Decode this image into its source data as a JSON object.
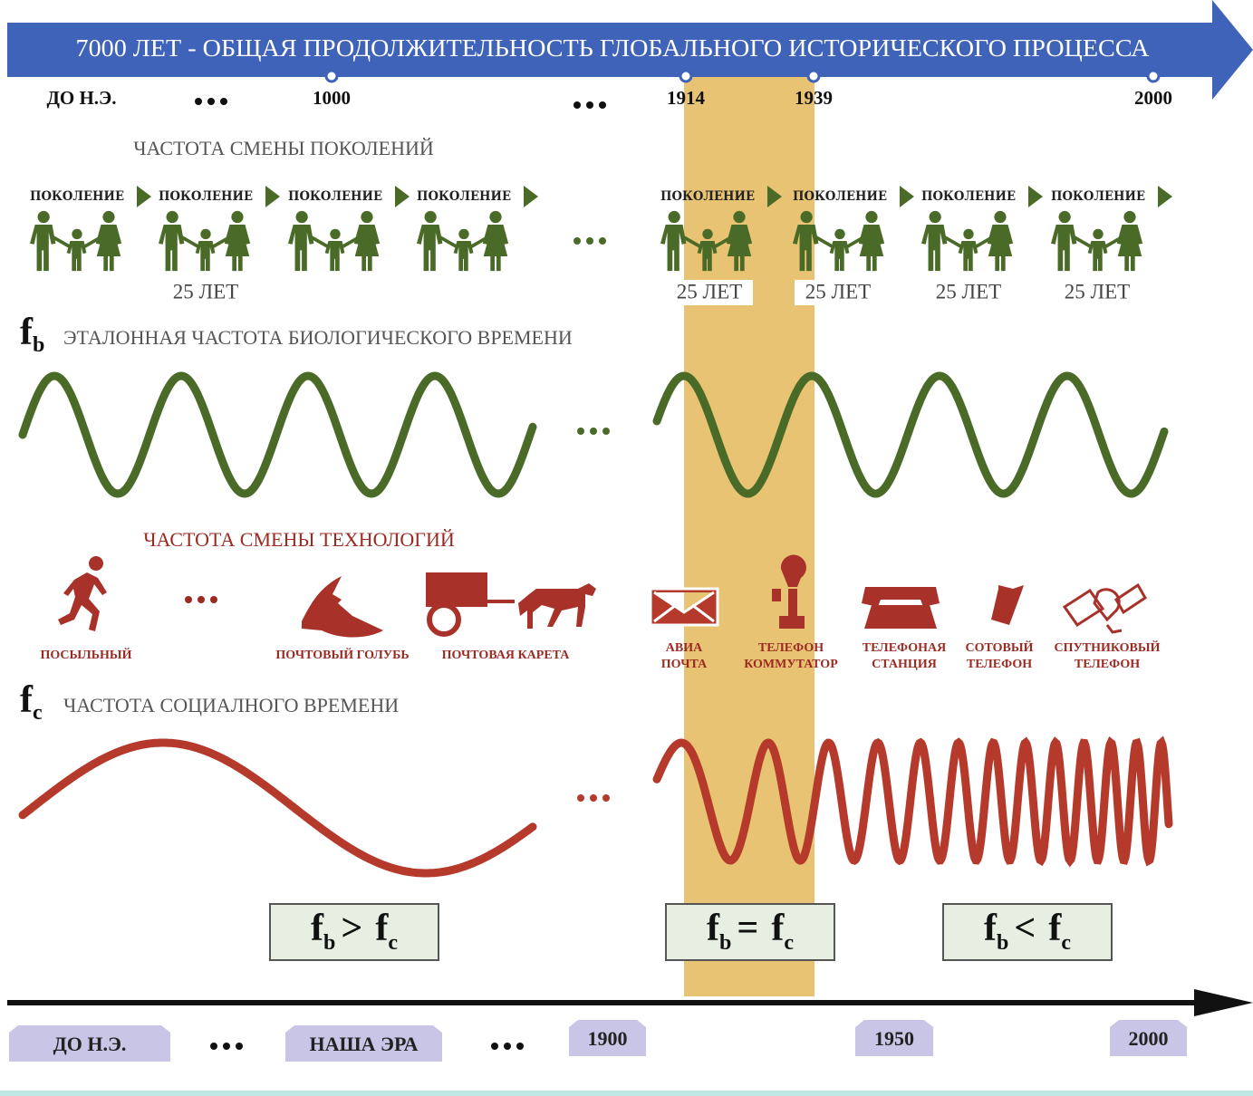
{
  "header": {
    "title": "7000 ЛЕТ - ОБЩАЯ ПРОДОЛЖИТЕЛЬНОСТЬ ГЛОБАЛЬНОГО ИСТОРИЧЕСКОГО ПРОЦЕССА"
  },
  "top_timeline": {
    "labels": [
      "ДО Н.Э.",
      "1000",
      "1914",
      "1939",
      "2000"
    ]
  },
  "generations": {
    "title": "ЧАСТОТА СМЕНЫ ПОКОЛЕНИЙ",
    "labels": [
      "ПОКОЛЕНИЕ",
      "ПОКОЛЕНИЕ",
      "ПОКОЛЕНИЕ",
      "ПОКОЛЕНИЕ",
      "ПОКОЛЕНИЕ",
      "ПОКОЛЕНИЕ",
      "ПОКОЛЕНИЕ",
      "ПОКОЛЕНИЕ"
    ],
    "durations": [
      "25 ЛЕТ",
      "25 ЛЕТ",
      "25 ЛЕТ",
      "25 ЛЕТ",
      "25 ЛЕТ"
    ]
  },
  "biological": {
    "symbol": "f",
    "subscript": "b",
    "title": "ЭТАЛОННАЯ ЧАСТОТА БИОЛОГИЧЕСКОГО ВРЕМЕНИ"
  },
  "technologies": {
    "title": "ЧАСТОТА СМЕНЫ ТЕХНОЛОГИЙ",
    "items": [
      [
        "ПОСЫЛЬНЫЙ"
      ],
      [
        "ПОЧТОВЫЙ ГОЛУБЬ"
      ],
      [
        "ПОЧТОВАЯ КАРЕТА"
      ],
      [
        "АВИА",
        "ПОЧТА"
      ],
      [
        "ТЕЛЕФОН",
        "КОММУТАТОР"
      ],
      [
        "ТЕЛЕФОНАЯ",
        "СТАНЦИЯ"
      ],
      [
        "СОТОВЫЙ",
        "ТЕЛЕФОН"
      ],
      [
        "СПУТНИКОВЫЙ",
        "ТЕЛЕФОН"
      ]
    ]
  },
  "social": {
    "symbol": "f",
    "subscript": "c",
    "title": "ЧАСТОТА СОЦИАЛНОГО ВРЕМЕНИ"
  },
  "comparisons": [
    {
      "left": "f",
      "left_sub": "b",
      "operator": ">",
      "right": "f",
      "right_sub": "c"
    },
    {
      "left": "f",
      "left_sub": "b",
      "operator": "=",
      "right": "f",
      "right_sub": "c"
    },
    {
      "left": "f",
      "left_sub": "b",
      "operator": "<",
      "right": "f",
      "right_sub": "c"
    }
  ],
  "bottom_timeline": {
    "labels": [
      "ДО Н.Э.",
      "НАША ЭРА",
      "1900",
      "1950",
      "2000"
    ]
  }
}
